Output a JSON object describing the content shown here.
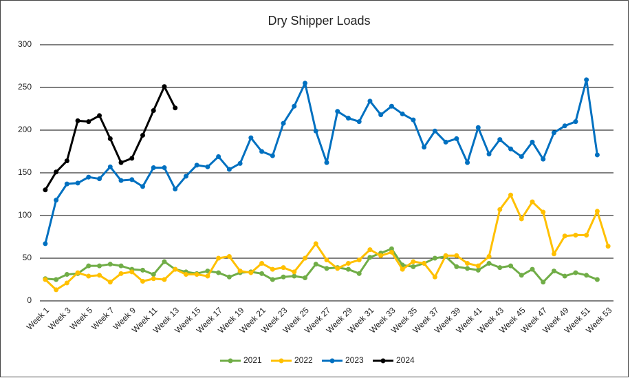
{
  "chart_data": {
    "type": "line",
    "title": "Dry Shipper Loads",
    "categories": [
      "Week 1",
      null,
      "Week 3",
      null,
      "Week 5",
      null,
      "Week 7",
      null,
      "Week 9",
      null,
      "Week 11",
      null,
      "Week 13",
      null,
      "Week 15",
      null,
      "Week 17",
      null,
      "Week 19",
      null,
      "Week 21",
      null,
      "Week 23",
      null,
      "Week 25",
      null,
      "Week 27",
      null,
      "Week 29",
      null,
      "Week 31",
      null,
      "Week 33",
      null,
      "Week 35",
      null,
      "Week 37",
      null,
      "Week 39",
      null,
      "Week 41",
      null,
      "Week 43",
      null,
      "Week 45",
      null,
      "Week 47",
      null,
      "Week 49",
      null,
      "Week 51",
      null,
      "Week 53"
    ],
    "series": [
      {
        "name": "2021",
        "color": "#70ad47",
        "values": [
          26,
          25,
          31,
          32,
          41,
          41,
          43,
          41,
          37,
          36,
          31,
          46,
          37,
          34,
          32,
          35,
          33,
          28,
          33,
          34,
          32,
          25,
          28,
          29,
          27,
          43,
          38,
          39,
          37,
          32,
          51,
          56,
          61,
          42,
          40,
          44,
          50,
          52,
          40,
          38,
          36,
          44,
          39,
          41,
          30,
          37,
          22,
          35,
          29,
          33,
          30,
          25,
          null
        ]
      },
      {
        "name": "2022",
        "color": "#ffc000",
        "values": [
          25,
          13,
          21,
          33,
          29,
          30,
          22,
          32,
          34,
          23,
          26,
          25,
          37,
          31,
          31,
          29,
          50,
          52,
          35,
          33,
          44,
          37,
          39,
          34,
          50,
          67,
          48,
          38,
          44,
          48,
          60,
          53,
          57,
          37,
          46,
          44,
          28,
          53,
          53,
          44,
          41,
          52,
          107,
          124,
          96,
          116,
          104,
          55,
          76,
          77,
          77,
          105,
          64
        ]
      },
      {
        "name": "2023",
        "color": "#0070c0",
        "values": [
          67,
          118,
          137,
          138,
          145,
          143,
          157,
          141,
          142,
          134,
          156,
          156,
          131,
          146,
          159,
          157,
          169,
          154,
          161,
          191,
          175,
          170,
          208,
          228,
          255,
          199,
          162,
          222,
          214,
          210,
          234,
          218,
          228,
          219,
          212,
          180,
          199,
          186,
          190,
          162,
          203,
          172,
          189,
          178,
          169,
          186,
          166,
          197,
          205,
          210,
          259,
          171,
          null
        ]
      },
      {
        "name": "2024",
        "color": "#000000",
        "values": [
          130,
          151,
          164,
          211,
          210,
          217,
          190,
          162,
          167,
          194,
          223,
          251,
          226,
          null,
          null,
          null,
          null,
          null,
          null,
          null,
          null,
          null,
          null,
          null,
          null,
          null,
          null,
          null,
          null,
          null,
          null,
          null,
          null,
          null,
          null,
          null,
          null,
          null,
          null,
          null,
          null,
          null,
          null,
          null,
          null,
          null,
          null,
          null,
          null,
          null,
          null,
          null,
          null
        ]
      }
    ],
    "ylim": [
      0,
      300
    ],
    "yticks": [
      0,
      50,
      100,
      150,
      200,
      250,
      300
    ],
    "grid": true,
    "legend": "bottom"
  }
}
